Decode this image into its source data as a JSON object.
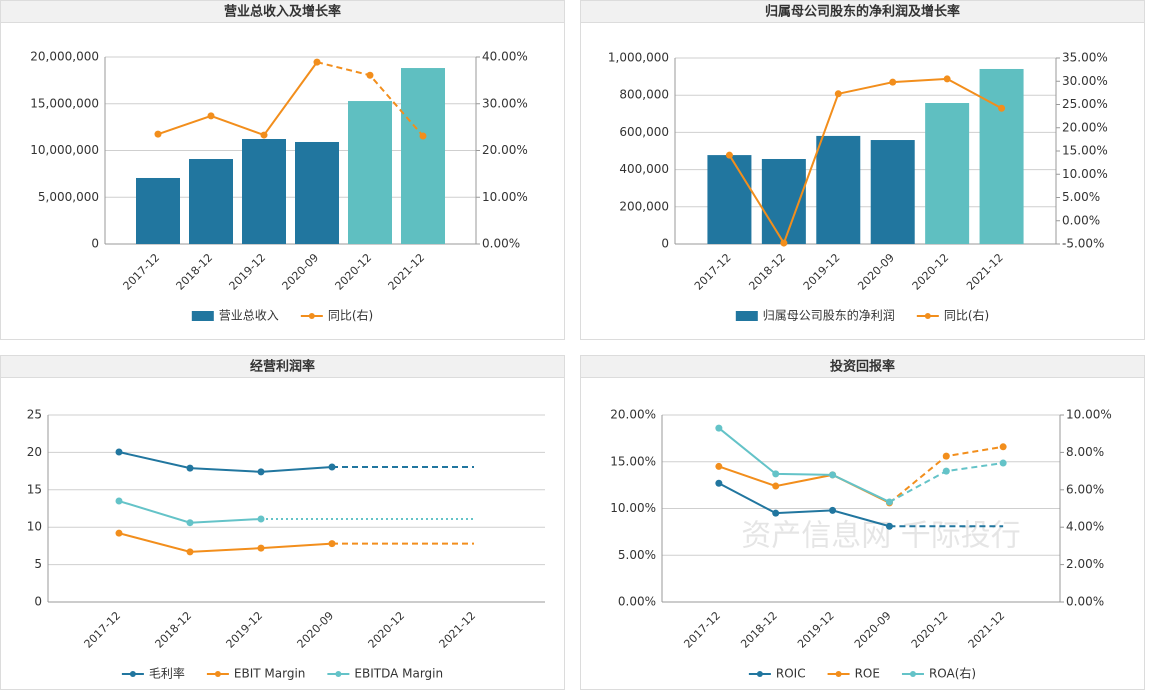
{
  "chart_data": [
    {
      "type": "bar",
      "title": "营业总收入及增长率",
      "categories": [
        "2017-12",
        "2018-12",
        "2019-12",
        "2020-09",
        "2020-12",
        "2021-12"
      ],
      "series": [
        {
          "name": "营业总收入",
          "type": "bar",
          "color": "#21769f",
          "forecast_color": "#5fbfc1",
          "forecast_from": "2020-12",
          "values": [
            7060000,
            9090000,
            11230000,
            10910000,
            15290000,
            18820000
          ]
        },
        {
          "name": "同比(右)",
          "type": "line",
          "axis": "y2",
          "color": "#f28e1c",
          "dashed_from": "2020-09",
          "values": [
            23.5,
            27.4,
            23.3,
            38.9,
            36.1,
            23.1
          ]
        }
      ],
      "ylim": [
        0,
        20000000
      ],
      "yticks": [
        0,
        {
          "value": 5000000,
          "label": "5,000,000"
        },
        {
          "value": 10000000,
          "label": "10,000,000"
        },
        {
          "value": 15000000,
          "label": "15,000,000"
        },
        {
          "value": 20000000,
          "label": "20,000,000"
        }
      ],
      "y2lim": [
        0,
        40
      ],
      "y2ticks": [
        {
          "value": 0,
          "label": "0.00%"
        },
        {
          "value": 10,
          "label": "10.00%"
        },
        {
          "value": 20,
          "label": "20.00%"
        },
        {
          "value": 30,
          "label": "30.00%"
        },
        {
          "value": 40,
          "label": "40.00%"
        }
      ],
      "grid": true,
      "legend": "bottom"
    },
    {
      "type": "bar",
      "title": "归属母公司股东的净利润及增长率",
      "categories": [
        "2017-12",
        "2018-12",
        "2019-12",
        "2020-09",
        "2020-12",
        "2021-12"
      ],
      "series": [
        {
          "name": "归属母公司股东的净利润",
          "type": "bar",
          "color": "#21769f",
          "forecast_color": "#5fbfc1",
          "forecast_from": "2020-12",
          "values": [
            478000,
            457000,
            581000,
            559000,
            758000,
            941000
          ]
        },
        {
          "name": "同比(右)",
          "type": "line",
          "axis": "y2",
          "color": "#f28e1c",
          "values": [
            14.1,
            -4.8,
            27.3,
            29.8,
            30.5,
            24.2
          ]
        }
      ],
      "ylim": [
        0,
        1000000
      ],
      "yticks": [
        0,
        {
          "value": 200000,
          "label": "200,000"
        },
        {
          "value": 400000,
          "label": "400,000"
        },
        {
          "value": 600000,
          "label": "600,000"
        },
        {
          "value": 800000,
          "label": "800,000"
        },
        {
          "value": 1000000,
          "label": "1,000,000"
        }
      ],
      "y2lim": [
        -5,
        35
      ],
      "y2ticks": [
        {
          "value": -5,
          "label": "-5.00%"
        },
        {
          "value": 0,
          "label": "0.00%"
        },
        {
          "value": 5,
          "label": "5.00%"
        },
        {
          "value": 10,
          "label": "10.00%"
        },
        {
          "value": 15,
          "label": "15.00%"
        },
        {
          "value": 20,
          "label": "20.00%"
        },
        {
          "value": 25,
          "label": "25.00%"
        },
        {
          "value": 30,
          "label": "30.00%"
        },
        {
          "value": 35,
          "label": "35.00%"
        }
      ],
      "grid": true,
      "legend": "bottom"
    },
    {
      "type": "line",
      "title": "经营利润率",
      "categories": [
        "2017-12",
        "2018-12",
        "2019-12",
        "2020-09",
        "2020-12",
        "2021-12"
      ],
      "series": [
        {
          "name": "毛利率",
          "type": "line",
          "color": "#21769f",
          "dashed_from": "2020-09",
          "markers_until": "2020-09",
          "values": [
            20.05,
            17.9,
            17.4,
            18.05,
            18.05,
            18.05
          ]
        },
        {
          "name": "EBIT Margin",
          "type": "line",
          "color": "#f28e1c",
          "dashed_from": "2020-09",
          "markers_until": "2020-09",
          "values": [
            9.2,
            6.7,
            7.2,
            7.8,
            7.8,
            7.8
          ]
        },
        {
          "name": "EBITDA Margin",
          "type": "line",
          "color": "#64c3c8",
          "dashed_from": "2019-12",
          "dash": "dotted",
          "markers_until": "2019-12",
          "values": [
            13.5,
            10.6,
            11.1,
            11.1,
            11.1,
            11.1
          ]
        }
      ],
      "ylim": [
        0,
        25
      ],
      "yticks": [
        0,
        5,
        10,
        15,
        20,
        25
      ],
      "grid": true,
      "legend": "bottom"
    },
    {
      "type": "line",
      "title": "投资回报率",
      "watermark": "资产信息网 千际投行",
      "categories": [
        "2017-12",
        "2018-12",
        "2019-12",
        "2020-09",
        "2020-12",
        "2021-12"
      ],
      "series": [
        {
          "name": "ROIC",
          "type": "line",
          "color": "#21769f",
          "dashed_from": "2020-09",
          "markers_until": "2020-09",
          "values": [
            12.7,
            9.5,
            9.8,
            8.1,
            8.1,
            8.1
          ]
        },
        {
          "name": "ROE",
          "type": "line",
          "color": "#f28e1c",
          "dashed_from": "2020-09",
          "values": [
            14.5,
            12.4,
            13.6,
            10.6,
            15.6,
            16.6
          ]
        },
        {
          "name": "ROA(右)",
          "type": "line",
          "axis": "y2",
          "color": "#64c3c8",
          "dashed_from": "2020-09",
          "values": [
            9.3,
            6.85,
            6.8,
            5.35,
            7.0,
            7.43
          ]
        }
      ],
      "ylim": [
        0,
        20
      ],
      "yticks": [
        {
          "value": 0,
          "label": "0.00%"
        },
        {
          "value": 5,
          "label": "5.00%"
        },
        {
          "value": 10,
          "label": "10.00%"
        },
        {
          "value": 15,
          "label": "15.00%"
        },
        {
          "value": 20,
          "label": "20.00%"
        }
      ],
      "y2lim": [
        0,
        10
      ],
      "y2ticks": [
        {
          "value": 0,
          "label": "0.00%"
        },
        {
          "value": 2,
          "label": "2.00%"
        },
        {
          "value": 4,
          "label": "4.00%"
        },
        {
          "value": 6,
          "label": "6.00%"
        },
        {
          "value": 8,
          "label": "8.00%"
        },
        {
          "value": 10,
          "label": "10.00%"
        }
      ],
      "grid": true,
      "legend": "bottom"
    }
  ]
}
